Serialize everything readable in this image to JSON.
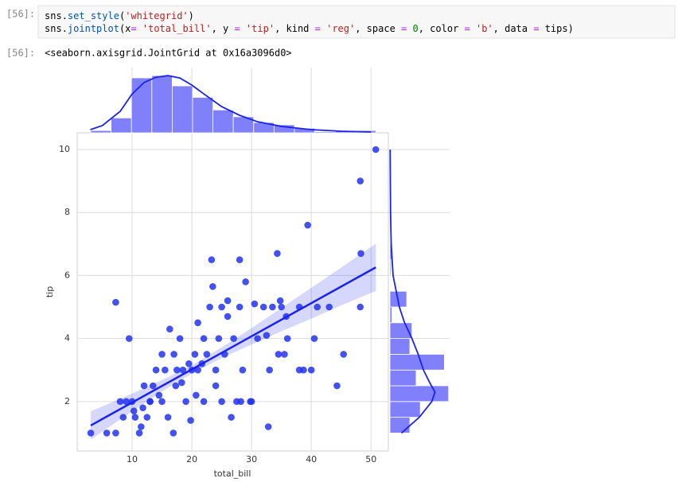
{
  "notebook": {
    "input_prompt": "[56]:",
    "code_lines": [
      [
        {
          "text": "sns",
          "color": "#000000"
        },
        {
          "text": ".",
          "color": "#000000"
        },
        {
          "text": "set_style",
          "color": "#0055aa"
        },
        {
          "text": "(",
          "color": "#000000"
        },
        {
          "text": "'whitegrid'",
          "color": "#ba2121"
        },
        {
          "text": ")",
          "color": "#000000"
        }
      ],
      [
        {
          "text": "sns",
          "color": "#000000"
        },
        {
          "text": ".",
          "color": "#000000"
        },
        {
          "text": "jointplot",
          "color": "#0055aa"
        },
        {
          "text": "(x",
          "color": "#000000"
        },
        {
          "text": "=",
          "color": "#aa22ff"
        },
        {
          "text": " 'total_bill'",
          "color": "#ba2121"
        },
        {
          "text": ", y ",
          "color": "#000000"
        },
        {
          "text": "=",
          "color": "#aa22ff"
        },
        {
          "text": " 'tip'",
          "color": "#ba2121"
        },
        {
          "text": ", kind ",
          "color": "#000000"
        },
        {
          "text": "=",
          "color": "#aa22ff"
        },
        {
          "text": " 'reg'",
          "color": "#ba2121"
        },
        {
          "text": ", space ",
          "color": "#000000"
        },
        {
          "text": "=",
          "color": "#aa22ff"
        },
        {
          "text": " 0",
          "color": "#008000"
        },
        {
          "text": ", color ",
          "color": "#000000"
        },
        {
          "text": "=",
          "color": "#aa22ff"
        },
        {
          "text": " 'b'",
          "color": "#ba2121"
        },
        {
          "text": ", data ",
          "color": "#000000"
        },
        {
          "text": "=",
          "color": "#aa22ff"
        },
        {
          "text": " tips)",
          "color": "#000000"
        }
      ]
    ],
    "output_prompt": "[56]:",
    "output_text": "<seaborn.axisgrid.JointGrid at 0x16a3096d0>"
  },
  "chart_data": {
    "type": "scatter",
    "xlabel": "total_bill",
    "ylabel": "tip",
    "color": "#2233ee",
    "x": [
      3.07,
      5.75,
      7.25,
      7.25,
      8.5,
      9.5,
      10.3,
      10.5,
      11.2,
      11.5,
      12.5,
      13.0,
      14,
      15,
      15.5,
      16.3,
      16,
      16.9,
      17,
      17.5,
      18,
      18.5,
      19,
      19.8,
      20,
      20.5,
      21,
      21,
      22,
      22.5,
      23,
      23.3,
      23.5,
      24,
      24.5,
      25,
      25,
      25.5,
      26,
      26,
      26.6,
      27,
      28,
      28,
      28.2,
      28.5,
      29,
      29.8,
      30.5,
      31,
      32,
      32.5,
      32.8,
      33,
      33.5,
      34.3,
      34.5,
      34.8,
      35,
      35.8,
      38,
      38,
      38.7,
      39.4,
      40,
      40.5,
      41,
      43,
      44.3,
      45.4,
      48.2,
      48.2,
      48.3,
      50.8,
      12,
      13.5,
      14.5,
      15,
      17.3,
      18.3,
      19.5,
      20.7,
      21.7,
      13,
      11.8,
      10,
      8,
      9,
      22,
      24,
      27.5,
      30,
      36,
      35.5
    ],
    "values": [
      1.0,
      1.0,
      1.0,
      5.15,
      1.5,
      4.0,
      1.7,
      1.5,
      1.0,
      1.2,
      1.5,
      2.0,
      3.0,
      2.0,
      3.0,
      4.3,
      1.5,
      1.0,
      3.5,
      3.0,
      4.0,
      3.0,
      2.0,
      1.4,
      3.0,
      3.5,
      4.5,
      3.0,
      2.0,
      3.5,
      5.0,
      6.5,
      5.65,
      3.0,
      4.0,
      5.0,
      2.0,
      3.5,
      4.7,
      5.2,
      1.5,
      4.0,
      6.5,
      5.0,
      2.0,
      3.0,
      5.8,
      2.0,
      5.1,
      4.0,
      5.0,
      4.1,
      1.2,
      3.0,
      5.0,
      6.7,
      3.5,
      5.2,
      5.0,
      4.7,
      5.0,
      3.0,
      3.0,
      7.6,
      3.0,
      4.0,
      5.0,
      5.0,
      2.5,
      3.5,
      9.0,
      5.0,
      6.7,
      10.0,
      2.5,
      2.5,
      2.2,
      3.5,
      2.5,
      2.6,
      3.2,
      2.2,
      3.2,
      2.0,
      1.8,
      2.0,
      2.0,
      2.0,
      4.0,
      2.5,
      2.0,
      2.0,
      4.0,
      3.5
    ],
    "regression": {
      "color": "#1a22ee",
      "x": [
        3.07,
        50.81
      ],
      "values": [
        1.24,
        6.26
      ],
      "ci_x": [
        3.07,
        10,
        15,
        20,
        25,
        30,
        35,
        40,
        45,
        50.81
      ],
      "ci_lower": [
        0.79,
        1.69,
        2.32,
        2.89,
        3.38,
        3.81,
        4.23,
        4.63,
        5.05,
        5.51
      ],
      "ci_upper": [
        1.69,
        2.25,
        2.68,
        3.15,
        3.72,
        4.33,
        4.97,
        5.61,
        6.25,
        7.01
      ]
    },
    "xlim": [
      0.8,
      52.9
    ],
    "ylim": [
      0.43,
      10.53
    ],
    "xticks": [
      10,
      20,
      30,
      40,
      50
    ],
    "yticks": [
      2,
      4,
      6,
      8,
      10
    ],
    "grid": true,
    "marginal_x": {
      "type": "histogram",
      "color": "#8080fa",
      "bins": [
        3.07,
        6.48,
        9.89,
        13.3,
        16.71,
        20.12,
        23.53,
        26.94,
        30.35,
        33.76,
        37.17,
        40.58,
        43.99,
        47.4,
        50.81
      ],
      "counts": [
        2,
        13,
        48,
        50,
        41,
        31,
        20,
        14,
        9,
        7,
        4,
        1,
        2,
        2
      ],
      "lim": [
        0,
        57
      ],
      "kde": {
        "x": [
          3,
          5,
          8,
          10,
          12,
          14,
          16,
          18,
          20,
          22,
          25,
          28,
          31,
          35,
          40,
          45,
          50
        ],
        "values": [
          2.8,
          6.3,
          18.8,
          34,
          44,
          48.6,
          50,
          47.9,
          41.7,
          34,
          22.9,
          15.3,
          9.7,
          5.6,
          2.8,
          1.4,
          0.7
        ]
      }
    },
    "marginal_y": {
      "type": "histogram",
      "color": "#8080fa",
      "bins": [
        1.0,
        1.5,
        2.0,
        2.5,
        3.0,
        3.5,
        4.0,
        4.5,
        5.0,
        5.5,
        6.0,
        6.5,
        7.0,
        7.5,
        8.0,
        8.5,
        9.0,
        9.5,
        10.0
      ],
      "counts": [
        19,
        29,
        56,
        25,
        52,
        19,
        21,
        2,
        16,
        0,
        1,
        2,
        0,
        0,
        0,
        0,
        1,
        1
      ],
      "lim": [
        0,
        57
      ],
      "kde": {
        "x": [
          1.0,
          1.5,
          2.0,
          2.3,
          2.6,
          3.0,
          3.5,
          4.0,
          4.5,
          5.0,
          5.5,
          6.0,
          7.0,
          8.0,
          9.0,
          10.0
        ],
        "values": [
          11,
          28,
          40,
          43,
          38,
          32,
          27,
          21,
          14,
          9,
          6,
          3,
          1.2,
          0.6,
          0.4,
          0.2
        ]
      }
    }
  }
}
